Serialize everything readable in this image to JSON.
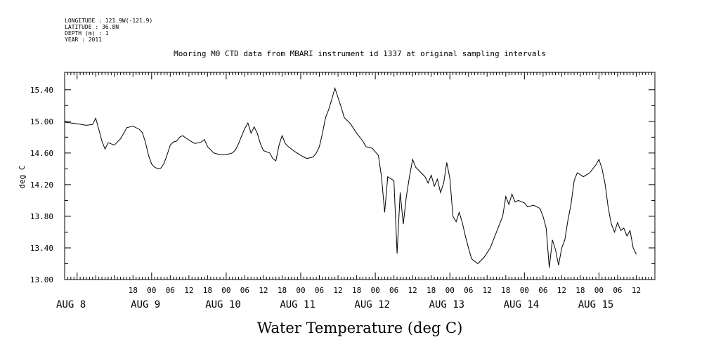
{
  "meta": {
    "longitude": "LONGITUDE : 121.9W(-121.9)",
    "latitude": "LATITUDE : 36.8N",
    "depth": "DEPTH (m) : 1",
    "year": "YEAR : 2011"
  },
  "chart_data": {
    "type": "line",
    "title": "Mooring M0 CTD data from MBARI instrument id 1337 at original sampling intervals",
    "ylabel": "deg C",
    "bottom_title": "Water Temperature (deg C)",
    "ylim": [
      13.0,
      15.62
    ],
    "yticks": [
      "13.00",
      "13.40",
      "13.80",
      "14.20",
      "14.60",
      "15.00",
      "15.40"
    ],
    "xlim_hours": [
      -4,
      186
    ],
    "x_hour_ticks": [
      {
        "h": 18,
        "label": "18"
      },
      {
        "h": 24,
        "label": "00"
      },
      {
        "h": 30,
        "label": "06"
      },
      {
        "h": 36,
        "label": "12"
      },
      {
        "h": 42,
        "label": "18"
      },
      {
        "h": 48,
        "label": "00"
      },
      {
        "h": 54,
        "label": "06"
      },
      {
        "h": 60,
        "label": "12"
      },
      {
        "h": 66,
        "label": "18"
      },
      {
        "h": 72,
        "label": "00"
      },
      {
        "h": 78,
        "label": "06"
      },
      {
        "h": 84,
        "label": "12"
      },
      {
        "h": 90,
        "label": "18"
      },
      {
        "h": 96,
        "label": "00"
      },
      {
        "h": 102,
        "label": "06"
      },
      {
        "h": 108,
        "label": "12"
      },
      {
        "h": 114,
        "label": "18"
      },
      {
        "h": 120,
        "label": "00"
      },
      {
        "h": 126,
        "label": "06"
      },
      {
        "h": 132,
        "label": "12"
      },
      {
        "h": 138,
        "label": "18"
      },
      {
        "h": 144,
        "label": "00"
      },
      {
        "h": 150,
        "label": "06"
      },
      {
        "h": 156,
        "label": "12"
      },
      {
        "h": 162,
        "label": "18"
      },
      {
        "h": 168,
        "label": "00"
      },
      {
        "h": 174,
        "label": "06"
      },
      {
        "h": 180,
        "label": "12"
      }
    ],
    "x_day_labels": [
      {
        "h": -4,
        "label": "AUG 8"
      },
      {
        "h": 20,
        "label": "AUG 9"
      },
      {
        "h": 44,
        "label": "AUG 10"
      },
      {
        "h": 68,
        "label": "AUG 11"
      },
      {
        "h": 92,
        "label": "AUG 12"
      },
      {
        "h": 116,
        "label": "AUG 13"
      },
      {
        "h": 140,
        "label": "AUG 14"
      },
      {
        "h": 164,
        "label": "AUG 15"
      }
    ],
    "series": [
      {
        "color": "#000000",
        "points": [
          [
            -4,
            14.99
          ],
          [
            0,
            14.97
          ],
          [
            3,
            14.95
          ],
          [
            5,
            14.96
          ],
          [
            6,
            15.04
          ],
          [
            7,
            14.9
          ],
          [
            8,
            14.75
          ],
          [
            9,
            14.65
          ],
          [
            10,
            14.73
          ],
          [
            12,
            14.7
          ],
          [
            14,
            14.78
          ],
          [
            15,
            14.85
          ],
          [
            16,
            14.92
          ],
          [
            18,
            14.94
          ],
          [
            20,
            14.9
          ],
          [
            21,
            14.86
          ],
          [
            22,
            14.74
          ],
          [
            23,
            14.57
          ],
          [
            24,
            14.46
          ],
          [
            25,
            14.42
          ],
          [
            26,
            14.4
          ],
          [
            27,
            14.41
          ],
          [
            28,
            14.47
          ],
          [
            29,
            14.58
          ],
          [
            30,
            14.7
          ],
          [
            31,
            14.74
          ],
          [
            32,
            14.75
          ],
          [
            33,
            14.8
          ],
          [
            34,
            14.82
          ],
          [
            35,
            14.79
          ],
          [
            37,
            14.74
          ],
          [
            38,
            14.72
          ],
          [
            40,
            14.74
          ],
          [
            41,
            14.77
          ],
          [
            42,
            14.68
          ],
          [
            44,
            14.6
          ],
          [
            46,
            14.58
          ],
          [
            48,
            14.58
          ],
          [
            50,
            14.6
          ],
          [
            51,
            14.64
          ],
          [
            52,
            14.72
          ],
          [
            53,
            14.82
          ],
          [
            54,
            14.91
          ],
          [
            55,
            14.98
          ],
          [
            56,
            14.85
          ],
          [
            57,
            14.93
          ],
          [
            58,
            14.85
          ],
          [
            59,
            14.72
          ],
          [
            60,
            14.63
          ],
          [
            62,
            14.6
          ],
          [
            63,
            14.53
          ],
          [
            64,
            14.5
          ],
          [
            65,
            14.7
          ],
          [
            66,
            14.82
          ],
          [
            67,
            14.72
          ],
          [
            68,
            14.68
          ],
          [
            70,
            14.62
          ],
          [
            72,
            14.57
          ],
          [
            73,
            14.55
          ],
          [
            74,
            14.53
          ],
          [
            76,
            14.55
          ],
          [
            77,
            14.6
          ],
          [
            78,
            14.68
          ],
          [
            79,
            14.85
          ],
          [
            80,
            15.05
          ],
          [
            81,
            15.15
          ],
          [
            82,
            15.28
          ],
          [
            83,
            15.42
          ],
          [
            84,
            15.3
          ],
          [
            85,
            15.18
          ],
          [
            86,
            15.05
          ],
          [
            88,
            14.97
          ],
          [
            90,
            14.85
          ],
          [
            92,
            14.75
          ],
          [
            93,
            14.68
          ],
          [
            95,
            14.66
          ],
          [
            97,
            14.57
          ],
          [
            98,
            14.3
          ],
          [
            99,
            13.85
          ],
          [
            100,
            14.3
          ],
          [
            102,
            14.25
          ],
          [
            103,
            13.33
          ],
          [
            104,
            14.1
          ],
          [
            105,
            13.7
          ],
          [
            106,
            14.05
          ],
          [
            107,
            14.3
          ],
          [
            108,
            14.52
          ],
          [
            109,
            14.42
          ],
          [
            110,
            14.38
          ],
          [
            112,
            14.3
          ],
          [
            113,
            14.22
          ],
          [
            114,
            14.32
          ],
          [
            115,
            14.18
          ],
          [
            116,
            14.27
          ],
          [
            117,
            14.1
          ],
          [
            118,
            14.22
          ],
          [
            119,
            14.48
          ],
          [
            120,
            14.28
          ],
          [
            121,
            13.8
          ],
          [
            122,
            13.73
          ],
          [
            123,
            13.85
          ],
          [
            124,
            13.72
          ],
          [
            125,
            13.55
          ],
          [
            126,
            13.4
          ],
          [
            127,
            13.26
          ],
          [
            129,
            13.2
          ],
          [
            131,
            13.28
          ],
          [
            133,
            13.4
          ],
          [
            135,
            13.6
          ],
          [
            137,
            13.8
          ],
          [
            138,
            14.05
          ],
          [
            139,
            13.95
          ],
          [
            140,
            14.08
          ],
          [
            141,
            13.98
          ],
          [
            142,
            14.0
          ],
          [
            144,
            13.97
          ],
          [
            145,
            13.92
          ],
          [
            147,
            13.94
          ],
          [
            149,
            13.9
          ],
          [
            150,
            13.8
          ],
          [
            151,
            13.65
          ],
          [
            152,
            13.15
          ],
          [
            153,
            13.5
          ],
          [
            154,
            13.38
          ],
          [
            155,
            13.18
          ],
          [
            156,
            13.4
          ],
          [
            157,
            13.5
          ],
          [
            158,
            13.75
          ],
          [
            159,
            13.95
          ],
          [
            160,
            14.25
          ],
          [
            161,
            14.35
          ],
          [
            163,
            14.3
          ],
          [
            165,
            14.35
          ],
          [
            166,
            14.4
          ],
          [
            167,
            14.45
          ],
          [
            168,
            14.52
          ],
          [
            169,
            14.4
          ],
          [
            170,
            14.2
          ],
          [
            171,
            13.9
          ],
          [
            172,
            13.7
          ],
          [
            173,
            13.6
          ],
          [
            174,
            13.72
          ],
          [
            175,
            13.62
          ],
          [
            176,
            13.65
          ],
          [
            177,
            13.55
          ],
          [
            178,
            13.62
          ],
          [
            179,
            13.4
          ],
          [
            180,
            13.32
          ]
        ]
      }
    ]
  }
}
